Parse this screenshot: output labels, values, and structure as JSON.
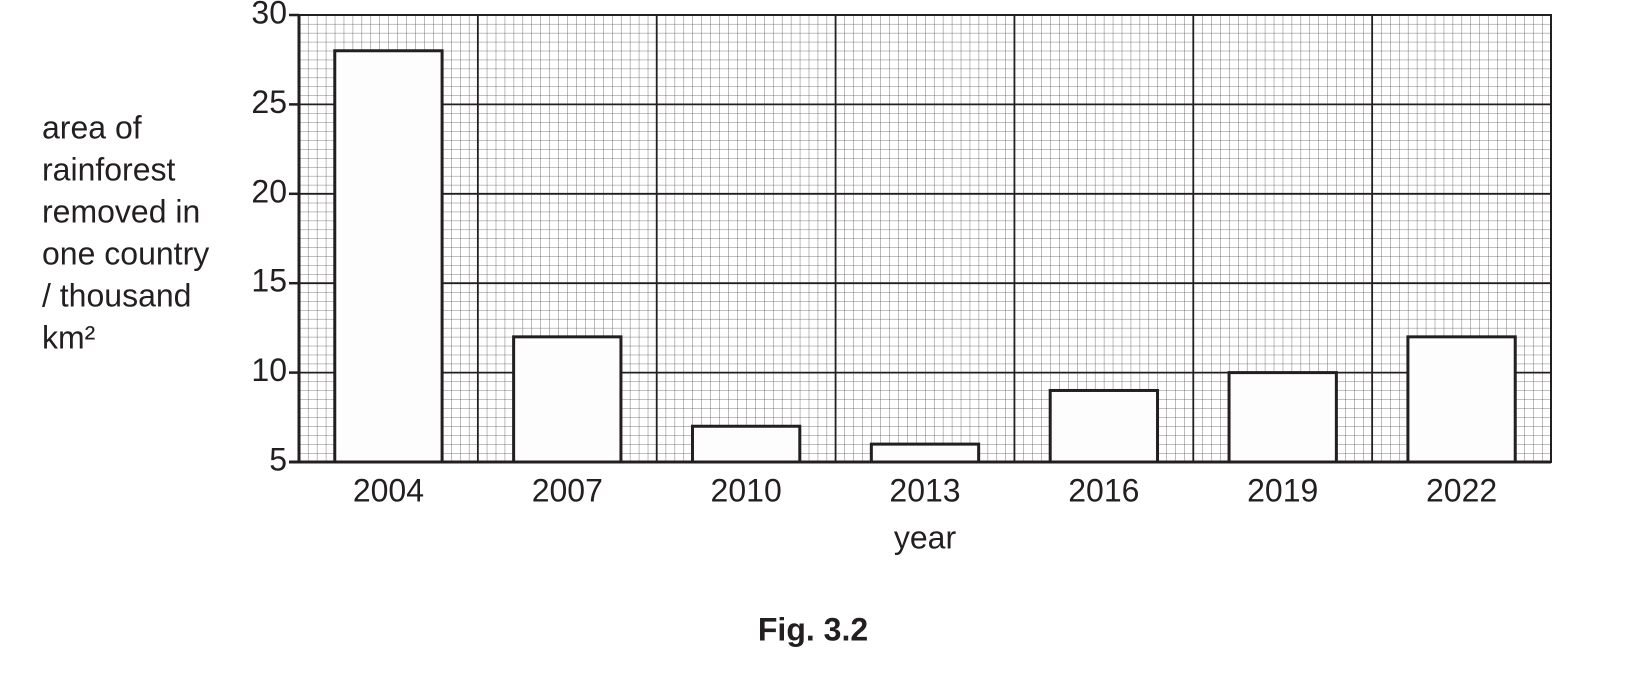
{
  "chart_data": {
    "type": "bar",
    "categories": [
      "2004",
      "2007",
      "2010",
      "2013",
      "2016",
      "2019",
      "2022"
    ],
    "values": [
      28,
      12,
      7,
      6,
      9,
      10,
      12
    ],
    "color": "#fdfdfd",
    "ylim": [
      5,
      30
    ],
    "yticks": [
      5,
      10,
      15,
      20,
      25,
      30
    ],
    "ylabel": [
      "area of",
      "rainforest",
      "removed in",
      "one country",
      "/ thousand",
      "km²"
    ],
    "xlabel": "year",
    "caption": "Fig. 3.2",
    "grid": true
  }
}
